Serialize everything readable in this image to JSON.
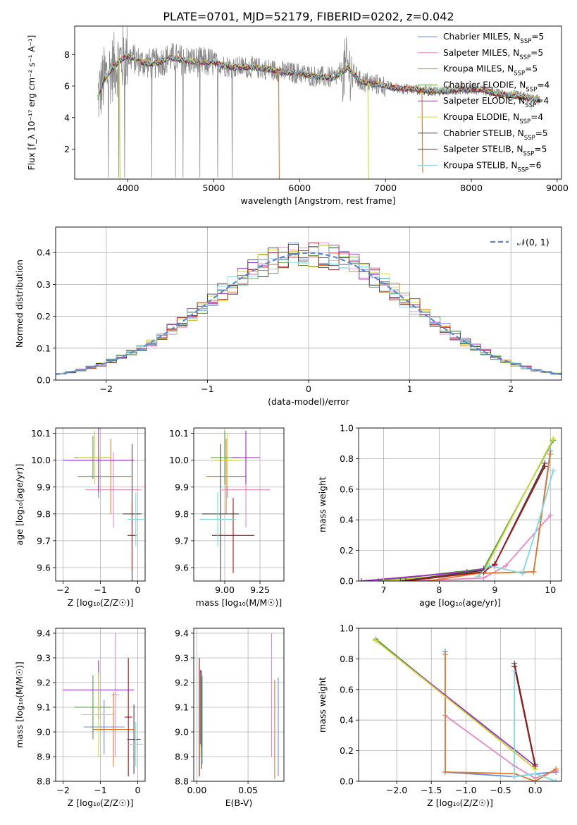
{
  "figure": {
    "title": "PLATE=0701, MJD=52179, FIBERID=0202, z=0.042"
  },
  "models": [
    {
      "name": "Chabrier MILES",
      "nssp": "5",
      "color": "#6a8bdf"
    },
    {
      "name": "Salpeter MILES",
      "nssp": "5",
      "color": "#e887c0"
    },
    {
      "name": "Kroupa MILES",
      "nssp": "5",
      "color": "#de7a2c"
    },
    {
      "name": "Chabrier ELODIE",
      "nssp": "4",
      "color": "#5a9d3f"
    },
    {
      "name": "Salpeter ELODIE",
      "nssp": "4",
      "color": "#9a2fc2"
    },
    {
      "name": "Kroupa ELODIE",
      "nssp": "4",
      "color": "#cfd839"
    },
    {
      "name": "Chabrier STELIB",
      "nssp": "5",
      "color": "#444444"
    },
    {
      "name": "Salpeter STELIB",
      "nssp": "5",
      "color": "#a01818"
    },
    {
      "name": "Kroupa STELIB",
      "nssp": "6",
      "color": "#7fd8dc"
    }
  ],
  "chart_data": [
    {
      "id": "spectrum",
      "type": "line",
      "xlabel": "wavelength [Angstrom, rest frame]",
      "ylabel": "Flux [f_λ 10⁻¹⁷ erg cm⁻² s⁻¹ A⁻¹]",
      "xlim": [
        3380,
        9050
      ],
      "ylim": [
        0.1,
        9.8
      ],
      "xticks": [
        4000,
        5000,
        6000,
        7000,
        8000,
        9000
      ],
      "yticks": [
        2,
        4,
        6,
        8
      ],
      "grid": false,
      "legend": "top-right",
      "data_color": "#888888",
      "continuum": {
        "x": [
          3650,
          3720,
          3800,
          3900,
          4000,
          4150,
          4300,
          4500,
          4700,
          4860,
          5000,
          5200,
          5400,
          5600,
          5800,
          6000,
          6200,
          6400,
          6563,
          6700,
          6900,
          7100,
          7300,
          7500,
          7700,
          7900,
          8100,
          8300,
          8500,
          8700,
          8800
        ],
        "y": [
          5.3,
          6.4,
          7.0,
          7.6,
          7.9,
          7.5,
          7.4,
          7.8,
          7.6,
          7.5,
          7.5,
          7.2,
          7.2,
          7.1,
          6.9,
          6.8,
          6.6,
          6.5,
          7.2,
          6.3,
          6.1,
          5.9,
          5.8,
          5.7,
          5.7,
          5.8,
          5.8,
          5.5,
          5.4,
          5.2,
          5.1
        ]
      },
      "drops": [
        {
          "x": 5755,
          "y": 0.1,
          "model": "Kroupa MILES"
        },
        {
          "x": 6795,
          "y": 0.1,
          "model": "Kroupa ELODIE"
        },
        {
          "x": 7425,
          "y": 0.5,
          "model": "Kroupa MILES"
        },
        {
          "x": 3900,
          "y": 0.1,
          "model": "Kroupa ELODIE"
        },
        {
          "x": 8690,
          "y": 4.5,
          "model": "Kroupa STELIB"
        }
      ]
    },
    {
      "id": "residuals",
      "type": "step",
      "xlabel": "(data-model)/error",
      "ylabel": "Normed distribution",
      "xlim": [
        -2.5,
        2.5
      ],
      "ylim": [
        0,
        0.48
      ],
      "xticks": [
        -2,
        -1,
        0,
        1,
        2
      ],
      "xticklabels": [
        "−2",
        "−1",
        "0",
        "1",
        "2"
      ],
      "yticks": [
        0.0,
        0.1,
        0.2,
        0.3,
        0.4
      ],
      "yticklabels": [
        "0.0",
        "0.1",
        "0.2",
        "0.3",
        "0.4"
      ],
      "grid": true,
      "legend": "top-right",
      "reference": {
        "label": "𝒩(0, 1)",
        "mean": 0,
        "sigma": 1,
        "color": "#5b86d6"
      },
      "bin_width": 0.1
    },
    {
      "id": "age-vs-Z",
      "type": "errorbar",
      "xlabel": "Z [log₁₀(Z/Z☉)]",
      "ylabel": "age  [log₁₀(age/yr)]",
      "xlim": [
        -2.2,
        0.2
      ],
      "ylim": [
        9.55,
        10.12
      ],
      "xticks": [
        -2,
        -1,
        0
      ],
      "xticklabels": [
        "−2",
        "−1",
        "0"
      ],
      "yticks": [
        9.6,
        9.7,
        9.8,
        9.9,
        10.0,
        10.1
      ],
      "yticklabels": [
        "9.6",
        "9.7",
        "9.8",
        "9.9",
        "10.0",
        "10.1"
      ],
      "grid": true,
      "points": [
        {
          "x": -1.05,
          "y": 9.94,
          "xe": 0.55,
          "ye": 0.08,
          "model": "Chabrier MILES"
        },
        {
          "x": -0.65,
          "y": 9.89,
          "xe": 0.75,
          "ye": 0.14,
          "model": "Salpeter MILES"
        },
        {
          "x": -0.72,
          "y": 9.94,
          "xe": 0.55,
          "ye": 0.14,
          "model": "Kroupa MILES"
        },
        {
          "x": -1.2,
          "y": 10.01,
          "xe": 0.5,
          "ye": 0.08,
          "model": "Chabrier ELODIE"
        },
        {
          "x": -1.05,
          "y": 10.0,
          "xe": 0.95,
          "ye": 0.12,
          "model": "Salpeter ELODIE"
        },
        {
          "x": -1.15,
          "y": 10.01,
          "xe": 0.45,
          "ye": 0.1,
          "model": "Kroupa ELODIE"
        },
        {
          "x": -0.15,
          "y": 9.8,
          "xe": 0.25,
          "ye": 0.26,
          "model": "Chabrier STELIB"
        },
        {
          "x": -0.15,
          "y": 9.72,
          "xe": 0.12,
          "ye": 0.13,
          "model": "Salpeter STELIB"
        },
        {
          "x": -0.05,
          "y": 9.78,
          "xe": 0.22,
          "ye": 0.1,
          "model": "Kroupa STELIB"
        }
      ]
    },
    {
      "id": "age-vs-mass",
      "type": "errorbar",
      "xlabel": "mass [log₁₀(M/M☉)]",
      "ylabel": "",
      "xlim": [
        8.78,
        9.42
      ],
      "ylim": [
        9.55,
        10.12
      ],
      "xticks": [
        9.0,
        9.25
      ],
      "xticklabels": [
        "9.00",
        "9.25"
      ],
      "yticks": [
        9.6,
        9.7,
        9.8,
        9.9,
        10.0,
        10.1
      ],
      "yticklabels": [
        "9.6",
        "9.7",
        "9.8",
        "9.9",
        "10.0",
        "10.1"
      ],
      "grid": true,
      "points": [
        {
          "x": 9.02,
          "y": 9.94,
          "xe": 0.11,
          "ye": 0.08,
          "model": "Chabrier MILES"
        },
        {
          "x": 9.15,
          "y": 9.89,
          "xe": 0.17,
          "ye": 0.14,
          "model": "Salpeter MILES"
        },
        {
          "x": 9.01,
          "y": 9.94,
          "xe": 0.14,
          "ye": 0.14,
          "model": "Kroupa MILES"
        },
        {
          "x": 9.0,
          "y": 10.01,
          "xe": 0.1,
          "ye": 0.1,
          "model": "Chabrier ELODIE"
        },
        {
          "x": 9.15,
          "y": 10.01,
          "xe": 0.1,
          "ye": 0.1,
          "model": "Salpeter ELODIE"
        },
        {
          "x": 9.02,
          "y": 10.0,
          "xe": 0.1,
          "ye": 0.1,
          "model": "Kroupa ELODIE"
        },
        {
          "x": 8.97,
          "y": 9.8,
          "xe": 0.13,
          "ye": 0.26,
          "model": "Chabrier STELIB"
        },
        {
          "x": 9.06,
          "y": 9.72,
          "xe": 0.15,
          "ye": 0.14,
          "model": "Salpeter STELIB"
        },
        {
          "x": 8.95,
          "y": 9.78,
          "xe": 0.13,
          "ye": 0.1,
          "model": "Kroupa STELIB"
        }
      ]
    },
    {
      "id": "massweight-vs-age",
      "type": "line",
      "xlabel": "age  [log₁₀(age/yr)]",
      "ylabel": "mass weight",
      "xlim": [
        6.55,
        10.2
      ],
      "ylim": [
        0,
        1.0
      ],
      "xticks": [
        7,
        8,
        9,
        10
      ],
      "xticklabels": [
        "7",
        "8",
        "9",
        "10"
      ],
      "yticks": [
        0.0,
        0.2,
        0.4,
        0.6,
        0.8,
        1.0
      ],
      "yticklabels": [
        "0.0",
        "0.2",
        "0.4",
        "0.6",
        "0.8",
        "1.0"
      ],
      "grid": true,
      "series": [
        {
          "model": "Chabrier MILES",
          "x": [
            6.9,
            8.7,
            9.7,
            10.0
          ],
          "y": [
            0.0,
            0.05,
            0.06,
            0.85
          ]
        },
        {
          "model": "Salpeter MILES",
          "x": [
            7.5,
            8.8,
            9.2,
            10.0
          ],
          "y": [
            0.0,
            0.02,
            0.1,
            0.43
          ]
        },
        {
          "model": "Kroupa MILES",
          "x": [
            7.8,
            8.7,
            9.7,
            10.0
          ],
          "y": [
            0.0,
            0.05,
            0.06,
            0.83
          ]
        },
        {
          "model": "Chabrier ELODIE",
          "x": [
            6.9,
            8.8,
            10.05
          ],
          "y": [
            0.0,
            0.08,
            0.92
          ]
        },
        {
          "model": "Salpeter ELODIE",
          "x": [
            6.6,
            8.5,
            8.8,
            9.0
          ],
          "y": [
            0.0,
            0.06,
            0.08,
            0.1
          ]
        },
        {
          "model": "Kroupa ELODIE",
          "x": [
            7.0,
            8.8,
            10.05
          ],
          "y": [
            0.0,
            0.06,
            0.93
          ]
        },
        {
          "model": "Chabrier STELIB",
          "x": [
            7.3,
            8.8,
            9.0,
            9.9
          ],
          "y": [
            0.0,
            0.07,
            0.11,
            0.77
          ]
        },
        {
          "model": "Salpeter STELIB",
          "x": [
            7.4,
            8.8,
            9.0,
            9.9
          ],
          "y": [
            0.0,
            0.06,
            0.11,
            0.75
          ]
        },
        {
          "model": "Kroupa STELIB",
          "x": [
            8.7,
            8.9,
            9.5,
            9.8,
            10.05
          ],
          "y": [
            0.03,
            0.1,
            0.05,
            0.4,
            0.72
          ]
        }
      ]
    },
    {
      "id": "mass-vs-Z",
      "type": "errorbar",
      "xlabel": "Z [log₁₀(Z/Z☉)]",
      "ylabel": "mass [log₁₀(M/M☉)]",
      "xlim": [
        -2.2,
        0.2
      ],
      "ylim": [
        8.8,
        9.42
      ],
      "xticks": [
        -2,
        -1,
        0
      ],
      "xticklabels": [
        "−2",
        "−1",
        "0"
      ],
      "yticks": [
        8.8,
        8.9,
        9.0,
        9.1,
        9.2,
        9.3,
        9.4
      ],
      "yticklabels": [
        "8.8",
        "8.9",
        "9.0",
        "9.1",
        "9.2",
        "9.3",
        "9.4"
      ],
      "grid": true,
      "points": [
        {
          "x": -0.9,
          "y": 9.02,
          "xe": 0.55,
          "ye": 0.11,
          "model": "Chabrier MILES"
        },
        {
          "x": -0.6,
          "y": 9.15,
          "xe": 0.1,
          "ye": 0.25,
          "model": "Salpeter MILES"
        },
        {
          "x": -0.65,
          "y": 9.01,
          "xe": 0.55,
          "ye": 0.15,
          "model": "Kroupa MILES"
        },
        {
          "x": -1.2,
          "y": 9.1,
          "xe": 0.5,
          "ye": 0.13,
          "model": "Chabrier ELODIE"
        },
        {
          "x": -1.05,
          "y": 9.17,
          "xe": 0.95,
          "ye": 0.12,
          "model": "Salpeter ELODIE"
        },
        {
          "x": -1.05,
          "y": 9.07,
          "xe": 0.45,
          "ye": 0.17,
          "model": "Kroupa ELODIE"
        },
        {
          "x": -0.1,
          "y": 8.97,
          "xe": 0.18,
          "ye": 0.14,
          "model": "Chabrier STELIB"
        },
        {
          "x": -0.25,
          "y": 9.06,
          "xe": 0.1,
          "ye": 0.24,
          "model": "Salpeter STELIB"
        },
        {
          "x": -0.05,
          "y": 8.95,
          "xe": 0.2,
          "ye": 0.09,
          "model": "Kroupa STELIB"
        }
      ]
    },
    {
      "id": "mass-vs-ebv",
      "type": "errorbar",
      "xlabel": "E(B-V)",
      "ylabel": "",
      "xlim": [
        -0.003,
        0.085
      ],
      "ylim": [
        8.8,
        9.42
      ],
      "xticks": [
        0.0,
        0.05
      ],
      "xticklabels": [
        "0.00",
        "0.05"
      ],
      "yticks": [
        8.8,
        8.9,
        9.0,
        9.1,
        9.2,
        9.3,
        9.4
      ],
      "yticklabels": [
        "8.8",
        "8.9",
        "9.0",
        "9.1",
        "9.2",
        "9.3",
        "9.4"
      ],
      "grid": true,
      "points": [
        {
          "x": 0.0795,
          "y": 9.02,
          "xe": 0,
          "ye": 0.2,
          "model": "Chabrier MILES"
        },
        {
          "x": 0.073,
          "y": 9.15,
          "xe": 0,
          "ye": 0.25,
          "model": "Salpeter MILES"
        },
        {
          "x": 0.076,
          "y": 9.01,
          "xe": 0,
          "ye": 0.2,
          "model": "Kroupa MILES"
        },
        {
          "x": 0.005,
          "y": 9.08,
          "xe": 0,
          "ye": 0.14,
          "model": "Chabrier ELODIE"
        },
        {
          "x": 0.0035,
          "y": 9.1,
          "xe": 0,
          "ye": 0.15,
          "model": "Salpeter ELODIE"
        },
        {
          "x": 0.004,
          "y": 9.07,
          "xe": 0,
          "ye": 0.17,
          "model": "Kroupa ELODIE"
        },
        {
          "x": 0.0045,
          "y": 9.05,
          "xe": 0,
          "ye": 0.2,
          "model": "Chabrier STELIB"
        },
        {
          "x": 0.0025,
          "y": 9.06,
          "xe": 0,
          "ye": 0.24,
          "model": "Salpeter STELIB"
        },
        {
          "x": 0.0055,
          "y": 9.05,
          "xe": 0,
          "ye": 0.18,
          "model": "Kroupa STELIB"
        }
      ]
    },
    {
      "id": "massweight-vs-Z",
      "type": "line",
      "xlabel": "Z [log₁₀(Z/Z☉)]",
      "ylabel": "mass weight",
      "xlim": [
        -2.55,
        0.38
      ],
      "ylim": [
        0,
        1.0
      ],
      "xticks": [
        -2.0,
        -1.5,
        -1.0,
        -0.5,
        0.0
      ],
      "xticklabels": [
        "−2.0",
        "−1.5",
        "−1.0",
        "−0.5",
        "0.0"
      ],
      "yticks": [
        0.0,
        0.2,
        0.4,
        0.6,
        0.8,
        1.0
      ],
      "yticklabels": [
        "0.0",
        "0.2",
        "0.4",
        "0.6",
        "0.8",
        "1.0"
      ],
      "grid": true,
      "series": [
        {
          "model": "Chabrier MILES",
          "x": [
            -1.3,
            -1.3,
            -0.3,
            0.0,
            0.3
          ],
          "y": [
            0.85,
            0.06,
            0.03,
            0.05,
            0.06
          ]
        },
        {
          "model": "Salpeter MILES",
          "x": [
            -1.3,
            -0.3,
            0.0,
            0.3
          ],
          "y": [
            0.43,
            0.1,
            0.02,
            0.07
          ]
        },
        {
          "model": "Kroupa MILES",
          "x": [
            -1.3,
            -1.3,
            -0.3,
            0.0,
            0.3
          ],
          "y": [
            0.83,
            0.06,
            0.05,
            0.0,
            0.08
          ]
        },
        {
          "model": "Chabrier ELODIE",
          "x": [
            -2.3,
            0.0
          ],
          "y": [
            0.93,
            0.08
          ]
        },
        {
          "model": "Salpeter ELODIE",
          "x": [
            -2.3,
            0.0
          ],
          "y": [
            0.92,
            0.1
          ]
        },
        {
          "model": "Kroupa ELODIE",
          "x": [
            -2.3,
            0.0
          ],
          "y": [
            0.92,
            0.08
          ]
        },
        {
          "model": "Chabrier STELIB",
          "x": [
            -0.3,
            0.0
          ],
          "y": [
            0.77,
            0.11
          ]
        },
        {
          "model": "Salpeter STELIB",
          "x": [
            -0.3,
            0.0
          ],
          "y": [
            0.75,
            0.1
          ]
        },
        {
          "model": "Kroupa STELIB",
          "x": [
            -0.3,
            -0.3,
            0.0,
            0.3
          ],
          "y": [
            0.72,
            0.03,
            0.05,
            0.0
          ]
        }
      ]
    }
  ]
}
